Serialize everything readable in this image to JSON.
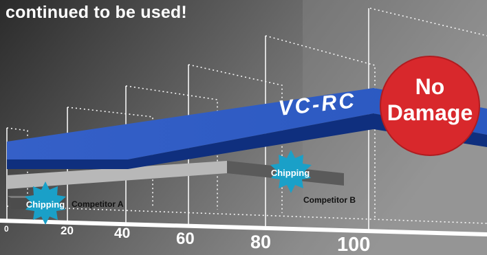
{
  "headline": "continued to be used!",
  "brand_label": "VC-RC",
  "result": {
    "line1": "No",
    "line2": "Damage"
  },
  "badges": [
    {
      "label": "Chipping"
    },
    {
      "label": "Chipping"
    }
  ],
  "competitors": [
    {
      "label": "Competitor A"
    },
    {
      "label": "Competitor B"
    }
  ],
  "axis_ticks": [
    "0",
    "20",
    "40",
    "60",
    "80",
    "100"
  ],
  "colors": {
    "background_dark": "#2e2e2e",
    "background_light": "#8a8a8a",
    "brand_bar": "#1e4fb0",
    "brand_bar_dark": "#0e2f7a",
    "burst": "#1aa0c8",
    "no_damage_circle": "#d8282c"
  }
}
